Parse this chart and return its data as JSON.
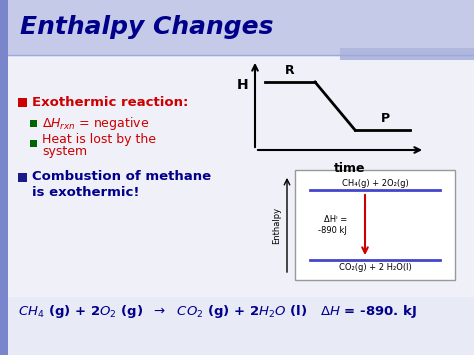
{
  "title": "Enthalpy Changes",
  "title_color": "#00008B",
  "bg_color": "#E8EAF6",
  "slide_bg": "#FFFFFF",
  "header_bar_color": "#B0B8E0",
  "bullet1_header": "Exothermic reaction:",
  "bullet1_color": "#CC0000",
  "bullet2a": "ΔH",
  "bullet2a_sub": "rxn",
  "bullet2b": " = negative",
  "bullet2_color": "#CC0000",
  "bullet3": "Heat is lost by the system",
  "bullet3_color": "#CC0000",
  "bullet4_header": "Combustion of methane is exothermic!",
  "bullet4_color": "#00008B",
  "green_square": "#006400",
  "red_square": "#CC0000",
  "bottom_text_color": "#00008B",
  "bottom_text": "CH₄ (g) + 2O₂ (g)  → CO₂ (g) + 2H₂O (l)   ΔH = -890. kJ",
  "diagram_bg": "#FFFFFF",
  "reactant_label": "CH₄(g) + 2O₂(g)",
  "product_label": "CO₂(g) + 2 H₂O(l)",
  "dH_label": "ΔHᴵ =\n-890 kJ",
  "enthalpy_label": "Enthalpy",
  "time_label": "time",
  "H_label": "H",
  "R_label": "R",
  "P_label": "P"
}
